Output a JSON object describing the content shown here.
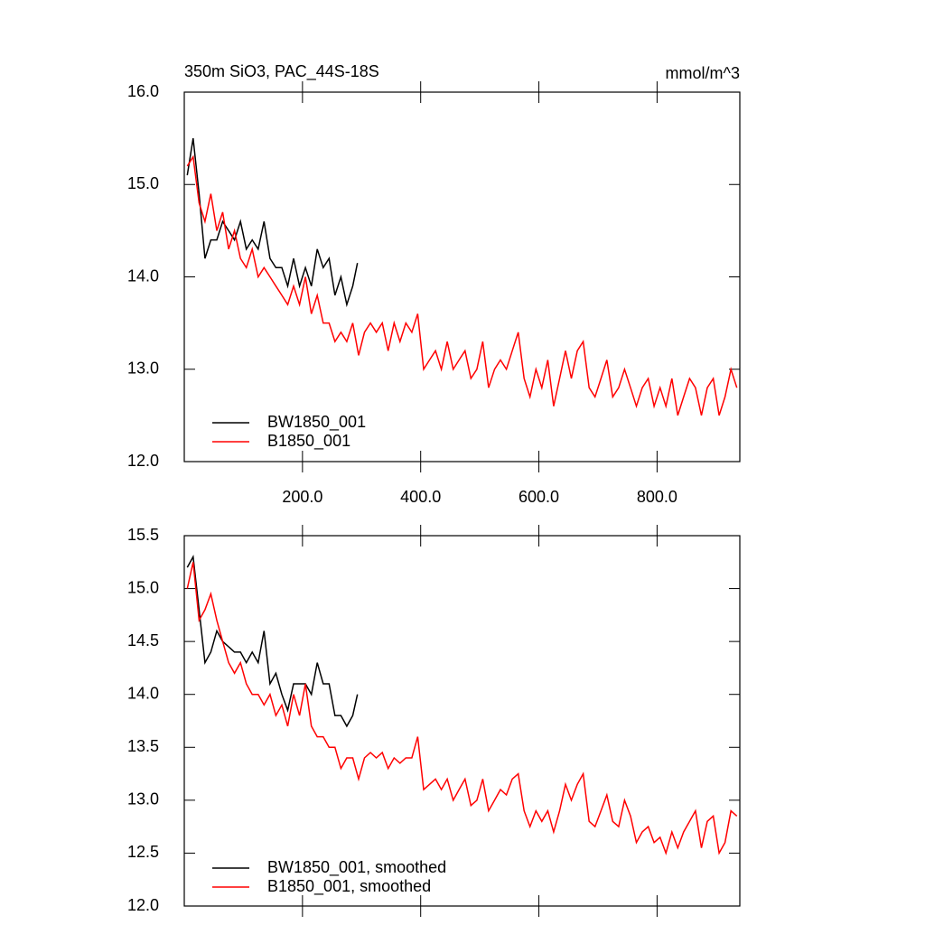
{
  "chart_data": [
    {
      "type": "line",
      "title": "350m SiO3, PAC_44S-18S",
      "units": "mmol/m^3",
      "xlim": [
        0,
        940
      ],
      "xticks": [
        {
          "value": 200,
          "label": "200.0"
        },
        {
          "value": 400,
          "label": "400.0"
        },
        {
          "value": 600,
          "label": "600.0"
        },
        {
          "value": 800,
          "label": "800.0"
        }
      ],
      "ylim": [
        12,
        16
      ],
      "yticks": [
        {
          "value": 12,
          "label": "12.0"
        },
        {
          "value": 13,
          "label": "13.0"
        },
        {
          "value": 14,
          "label": "14.0"
        },
        {
          "value": 15,
          "label": "15.0"
        },
        {
          "value": 16,
          "label": "16.0"
        }
      ],
      "legend": "lower left",
      "series": [
        {
          "name": "BW1850_001",
          "color": "#000000",
          "x": [
            5,
            15,
            25,
            35,
            45,
            55,
            65,
            75,
            85,
            95,
            105,
            115,
            125,
            135,
            145,
            155,
            165,
            175,
            185,
            195,
            205,
            215,
            225,
            235,
            245,
            255,
            265,
            275,
            285,
            293
          ],
          "values": [
            15.1,
            15.5,
            14.9,
            14.2,
            14.4,
            14.4,
            14.6,
            14.5,
            14.4,
            14.6,
            14.3,
            14.4,
            14.3,
            14.6,
            14.2,
            14.1,
            14.1,
            13.9,
            14.2,
            13.9,
            14.1,
            13.9,
            14.3,
            14.1,
            14.2,
            13.8,
            14.0,
            13.7,
            13.9,
            14.15
          ]
        },
        {
          "name": "B1850_001",
          "color": "#ff0000",
          "x": [
            5,
            15,
            25,
            35,
            45,
            55,
            65,
            75,
            85,
            95,
            105,
            115,
            125,
            135,
            145,
            155,
            165,
            175,
            185,
            195,
            205,
            215,
            225,
            235,
            245,
            255,
            265,
            275,
            285,
            295,
            305,
            315,
            325,
            335,
            345,
            355,
            365,
            375,
            385,
            395,
            405,
            415,
            425,
            435,
            445,
            455,
            465,
            475,
            485,
            495,
            505,
            515,
            525,
            535,
            545,
            555,
            565,
            575,
            585,
            595,
            605,
            615,
            625,
            635,
            645,
            655,
            665,
            675,
            685,
            695,
            705,
            715,
            725,
            735,
            745,
            755,
            765,
            775,
            785,
            795,
            805,
            815,
            825,
            835,
            845,
            855,
            865,
            875,
            885,
            895,
            905,
            915,
            925,
            935
          ],
          "values": [
            15.2,
            15.3,
            14.8,
            14.6,
            14.9,
            14.5,
            14.7,
            14.3,
            14.5,
            14.2,
            14.1,
            14.3,
            14.0,
            14.1,
            14.0,
            13.9,
            13.8,
            13.7,
            13.9,
            13.7,
            14.0,
            13.6,
            13.8,
            13.5,
            13.5,
            13.3,
            13.4,
            13.3,
            13.5,
            13.15,
            13.4,
            13.5,
            13.4,
            13.5,
            13.2,
            13.5,
            13.3,
            13.5,
            13.4,
            13.6,
            13.0,
            13.1,
            13.2,
            13.0,
            13.3,
            13.0,
            13.1,
            13.2,
            12.9,
            13.0,
            13.3,
            12.8,
            13.0,
            13.1,
            13.0,
            13.2,
            13.4,
            12.9,
            12.7,
            13.0,
            12.8,
            13.1,
            12.6,
            12.9,
            13.2,
            12.9,
            13.2,
            13.3,
            12.8,
            12.7,
            12.9,
            13.1,
            12.7,
            12.8,
            13.0,
            12.8,
            12.6,
            12.8,
            12.9,
            12.6,
            12.8,
            12.6,
            12.9,
            12.5,
            12.7,
            12.9,
            12.8,
            12.5,
            12.8,
            12.9,
            12.5,
            12.7,
            13.0,
            12.8
          ]
        }
      ]
    },
    {
      "type": "line",
      "xlim": [
        0,
        940
      ],
      "xticks": [
        200,
        400,
        600,
        800
      ],
      "ylim": [
        12,
        15.5
      ],
      "yticks": [
        {
          "value": 12,
          "label": "12.0"
        },
        {
          "value": 12.5,
          "label": "12.5"
        },
        {
          "value": 13,
          "label": "13.0"
        },
        {
          "value": 13.5,
          "label": "13.5"
        },
        {
          "value": 14,
          "label": "14.0"
        },
        {
          "value": 14.5,
          "label": "14.5"
        },
        {
          "value": 15,
          "label": "15.0"
        },
        {
          "value": 15.5,
          "label": "15.5"
        }
      ],
      "legend": "lower left",
      "series": [
        {
          "name": "BW1850_001, smoothed",
          "color": "#000000",
          "x": [
            5,
            15,
            25,
            35,
            45,
            55,
            65,
            75,
            85,
            95,
            105,
            115,
            125,
            135,
            145,
            155,
            165,
            175,
            185,
            195,
            205,
            215,
            225,
            235,
            245,
            255,
            265,
            275,
            285,
            293
          ],
          "values": [
            15.2,
            15.3,
            14.8,
            14.3,
            14.4,
            14.6,
            14.5,
            14.45,
            14.4,
            14.4,
            14.3,
            14.4,
            14.3,
            14.6,
            14.1,
            14.2,
            14.0,
            13.85,
            14.1,
            14.1,
            14.1,
            14.0,
            14.3,
            14.1,
            14.1,
            13.8,
            13.8,
            13.7,
            13.8,
            14.0
          ]
        },
        {
          "name": "B1850_001, smoothed",
          "color": "#ff0000",
          "x": [
            5,
            15,
            25,
            35,
            45,
            55,
            65,
            75,
            85,
            95,
            105,
            115,
            125,
            135,
            145,
            155,
            165,
            175,
            185,
            195,
            205,
            215,
            225,
            235,
            245,
            255,
            265,
            275,
            285,
            295,
            305,
            315,
            325,
            335,
            345,
            355,
            365,
            375,
            385,
            395,
            405,
            415,
            425,
            435,
            445,
            455,
            465,
            475,
            485,
            495,
            505,
            515,
            525,
            535,
            545,
            555,
            565,
            575,
            585,
            595,
            605,
            615,
            625,
            635,
            645,
            655,
            665,
            675,
            685,
            695,
            705,
            715,
            725,
            735,
            745,
            755,
            765,
            775,
            785,
            795,
            805,
            815,
            825,
            835,
            845,
            855,
            865,
            875,
            885,
            895,
            905,
            915,
            925,
            935
          ],
          "values": [
            15.0,
            15.25,
            14.7,
            14.8,
            14.95,
            14.7,
            14.5,
            14.3,
            14.2,
            14.3,
            14.1,
            14.0,
            14.0,
            13.9,
            14.0,
            13.8,
            13.9,
            13.7,
            14.0,
            13.8,
            14.1,
            13.7,
            13.6,
            13.6,
            13.5,
            13.5,
            13.3,
            13.4,
            13.4,
            13.2,
            13.4,
            13.45,
            13.4,
            13.45,
            13.3,
            13.4,
            13.35,
            13.4,
            13.4,
            13.6,
            13.1,
            13.15,
            13.2,
            13.1,
            13.2,
            13.0,
            13.1,
            13.2,
            12.95,
            13.0,
            13.2,
            12.9,
            13.0,
            13.1,
            13.05,
            13.2,
            13.25,
            12.9,
            12.75,
            12.9,
            12.8,
            12.9,
            12.7,
            12.9,
            13.15,
            13.0,
            13.15,
            13.25,
            12.8,
            12.75,
            12.9,
            13.05,
            12.8,
            12.75,
            13.0,
            12.85,
            12.6,
            12.7,
            12.75,
            12.6,
            12.65,
            12.5,
            12.7,
            12.55,
            12.7,
            12.8,
            12.9,
            12.55,
            12.8,
            12.85,
            12.5,
            12.6,
            12.9,
            12.85
          ]
        }
      ]
    }
  ]
}
